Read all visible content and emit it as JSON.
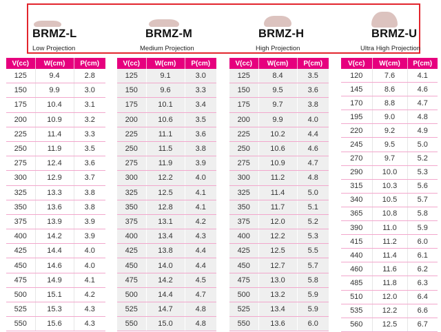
{
  "models": [
    {
      "name": "BRMZ-L",
      "projection": "Low Projection"
    },
    {
      "name": "BRMZ-M",
      "projection": "Medium Projection"
    },
    {
      "name": "BRMZ-H",
      "projection": "High Projection"
    },
    {
      "name": "BRMZ-U",
      "projection": "Ultra High Projection"
    }
  ],
  "columns": [
    "V(cc)",
    "W(cm)",
    "P(cm)"
  ],
  "tables": [
    {
      "rows": [
        [
          "125",
          "9.4",
          "2.8"
        ],
        [
          "150",
          "9.9",
          "3.0"
        ],
        [
          "175",
          "10.4",
          "3.1"
        ],
        [
          "200",
          "10.9",
          "3.2"
        ],
        [
          "225",
          "11.4",
          "3.3"
        ],
        [
          "250",
          "11.9",
          "3.5"
        ],
        [
          "275",
          "12.4",
          "3.6"
        ],
        [
          "300",
          "12.9",
          "3.7"
        ],
        [
          "325",
          "13.3",
          "3.8"
        ],
        [
          "350",
          "13.6",
          "3.8"
        ],
        [
          "375",
          "13.9",
          "3.9"
        ],
        [
          "400",
          "14.2",
          "3.9"
        ],
        [
          "425",
          "14.4",
          "4.0"
        ],
        [
          "450",
          "14.6",
          "4.0"
        ],
        [
          "475",
          "14.9",
          "4.1"
        ],
        [
          "500",
          "15.1",
          "4.2"
        ],
        [
          "525",
          "15.3",
          "4.3"
        ],
        [
          "550",
          "15.6",
          "4.3"
        ]
      ]
    },
    {
      "rows": [
        [
          "125",
          "9.1",
          "3.0"
        ],
        [
          "150",
          "9.6",
          "3.3"
        ],
        [
          "175",
          "10.1",
          "3.4"
        ],
        [
          "200",
          "10.6",
          "3.5"
        ],
        [
          "225",
          "11.1",
          "3.6"
        ],
        [
          "250",
          "11.5",
          "3.8"
        ],
        [
          "275",
          "11.9",
          "3.9"
        ],
        [
          "300",
          "12.2",
          "4.0"
        ],
        [
          "325",
          "12.5",
          "4.1"
        ],
        [
          "350",
          "12.8",
          "4.1"
        ],
        [
          "375",
          "13.1",
          "4.2"
        ],
        [
          "400",
          "13.4",
          "4.3"
        ],
        [
          "425",
          "13.8",
          "4.4"
        ],
        [
          "450",
          "14.0",
          "4.4"
        ],
        [
          "475",
          "14.2",
          "4.5"
        ],
        [
          "500",
          "14.4",
          "4.7"
        ],
        [
          "525",
          "14.7",
          "4.8"
        ],
        [
          "550",
          "15.0",
          "4.8"
        ]
      ]
    },
    {
      "rows": [
        [
          "125",
          "8.4",
          "3.5"
        ],
        [
          "150",
          "9.5",
          "3.6"
        ],
        [
          "175",
          "9.7",
          "3.8"
        ],
        [
          "200",
          "9.9",
          "4.0"
        ],
        [
          "225",
          "10.2",
          "4.4"
        ],
        [
          "250",
          "10.6",
          "4.6"
        ],
        [
          "275",
          "10.9",
          "4.7"
        ],
        [
          "300",
          "11.2",
          "4.8"
        ],
        [
          "325",
          "11.4",
          "5.0"
        ],
        [
          "350",
          "11.7",
          "5.1"
        ],
        [
          "375",
          "12.0",
          "5.2"
        ],
        [
          "400",
          "12.2",
          "5.3"
        ],
        [
          "425",
          "12.5",
          "5.5"
        ],
        [
          "450",
          "12.7",
          "5.7"
        ],
        [
          "475",
          "13.0",
          "5.8"
        ],
        [
          "500",
          "13.2",
          "5.9"
        ],
        [
          "525",
          "13.4",
          "5.9"
        ],
        [
          "550",
          "13.6",
          "6.0"
        ]
      ]
    },
    {
      "rows": [
        [
          "120",
          "7.6",
          "4.1"
        ],
        [
          "145",
          "8.6",
          "4.6"
        ],
        [
          "170",
          "8.8",
          "4.7"
        ],
        [
          "195",
          "9.0",
          "4.8"
        ],
        [
          "220",
          "9.2",
          "4.9"
        ],
        [
          "245",
          "9.5",
          "5.0"
        ],
        [
          "270",
          "9.7",
          "5.2"
        ],
        [
          "290",
          "10.0",
          "5.3"
        ],
        [
          "315",
          "10.3",
          "5.6"
        ],
        [
          "340",
          "10.5",
          "5.7"
        ],
        [
          "365",
          "10.8",
          "5.8"
        ],
        [
          "390",
          "11.0",
          "5.9"
        ],
        [
          "415",
          "11.2",
          "6.0"
        ],
        [
          "440",
          "11.4",
          "6.1"
        ],
        [
          "460",
          "11.6",
          "6.2"
        ],
        [
          "485",
          "11.8",
          "6.3"
        ],
        [
          "510",
          "12.0",
          "6.4"
        ],
        [
          "535",
          "12.2",
          "6.6"
        ],
        [
          "560",
          "12.5",
          "6.7"
        ]
      ]
    }
  ]
}
